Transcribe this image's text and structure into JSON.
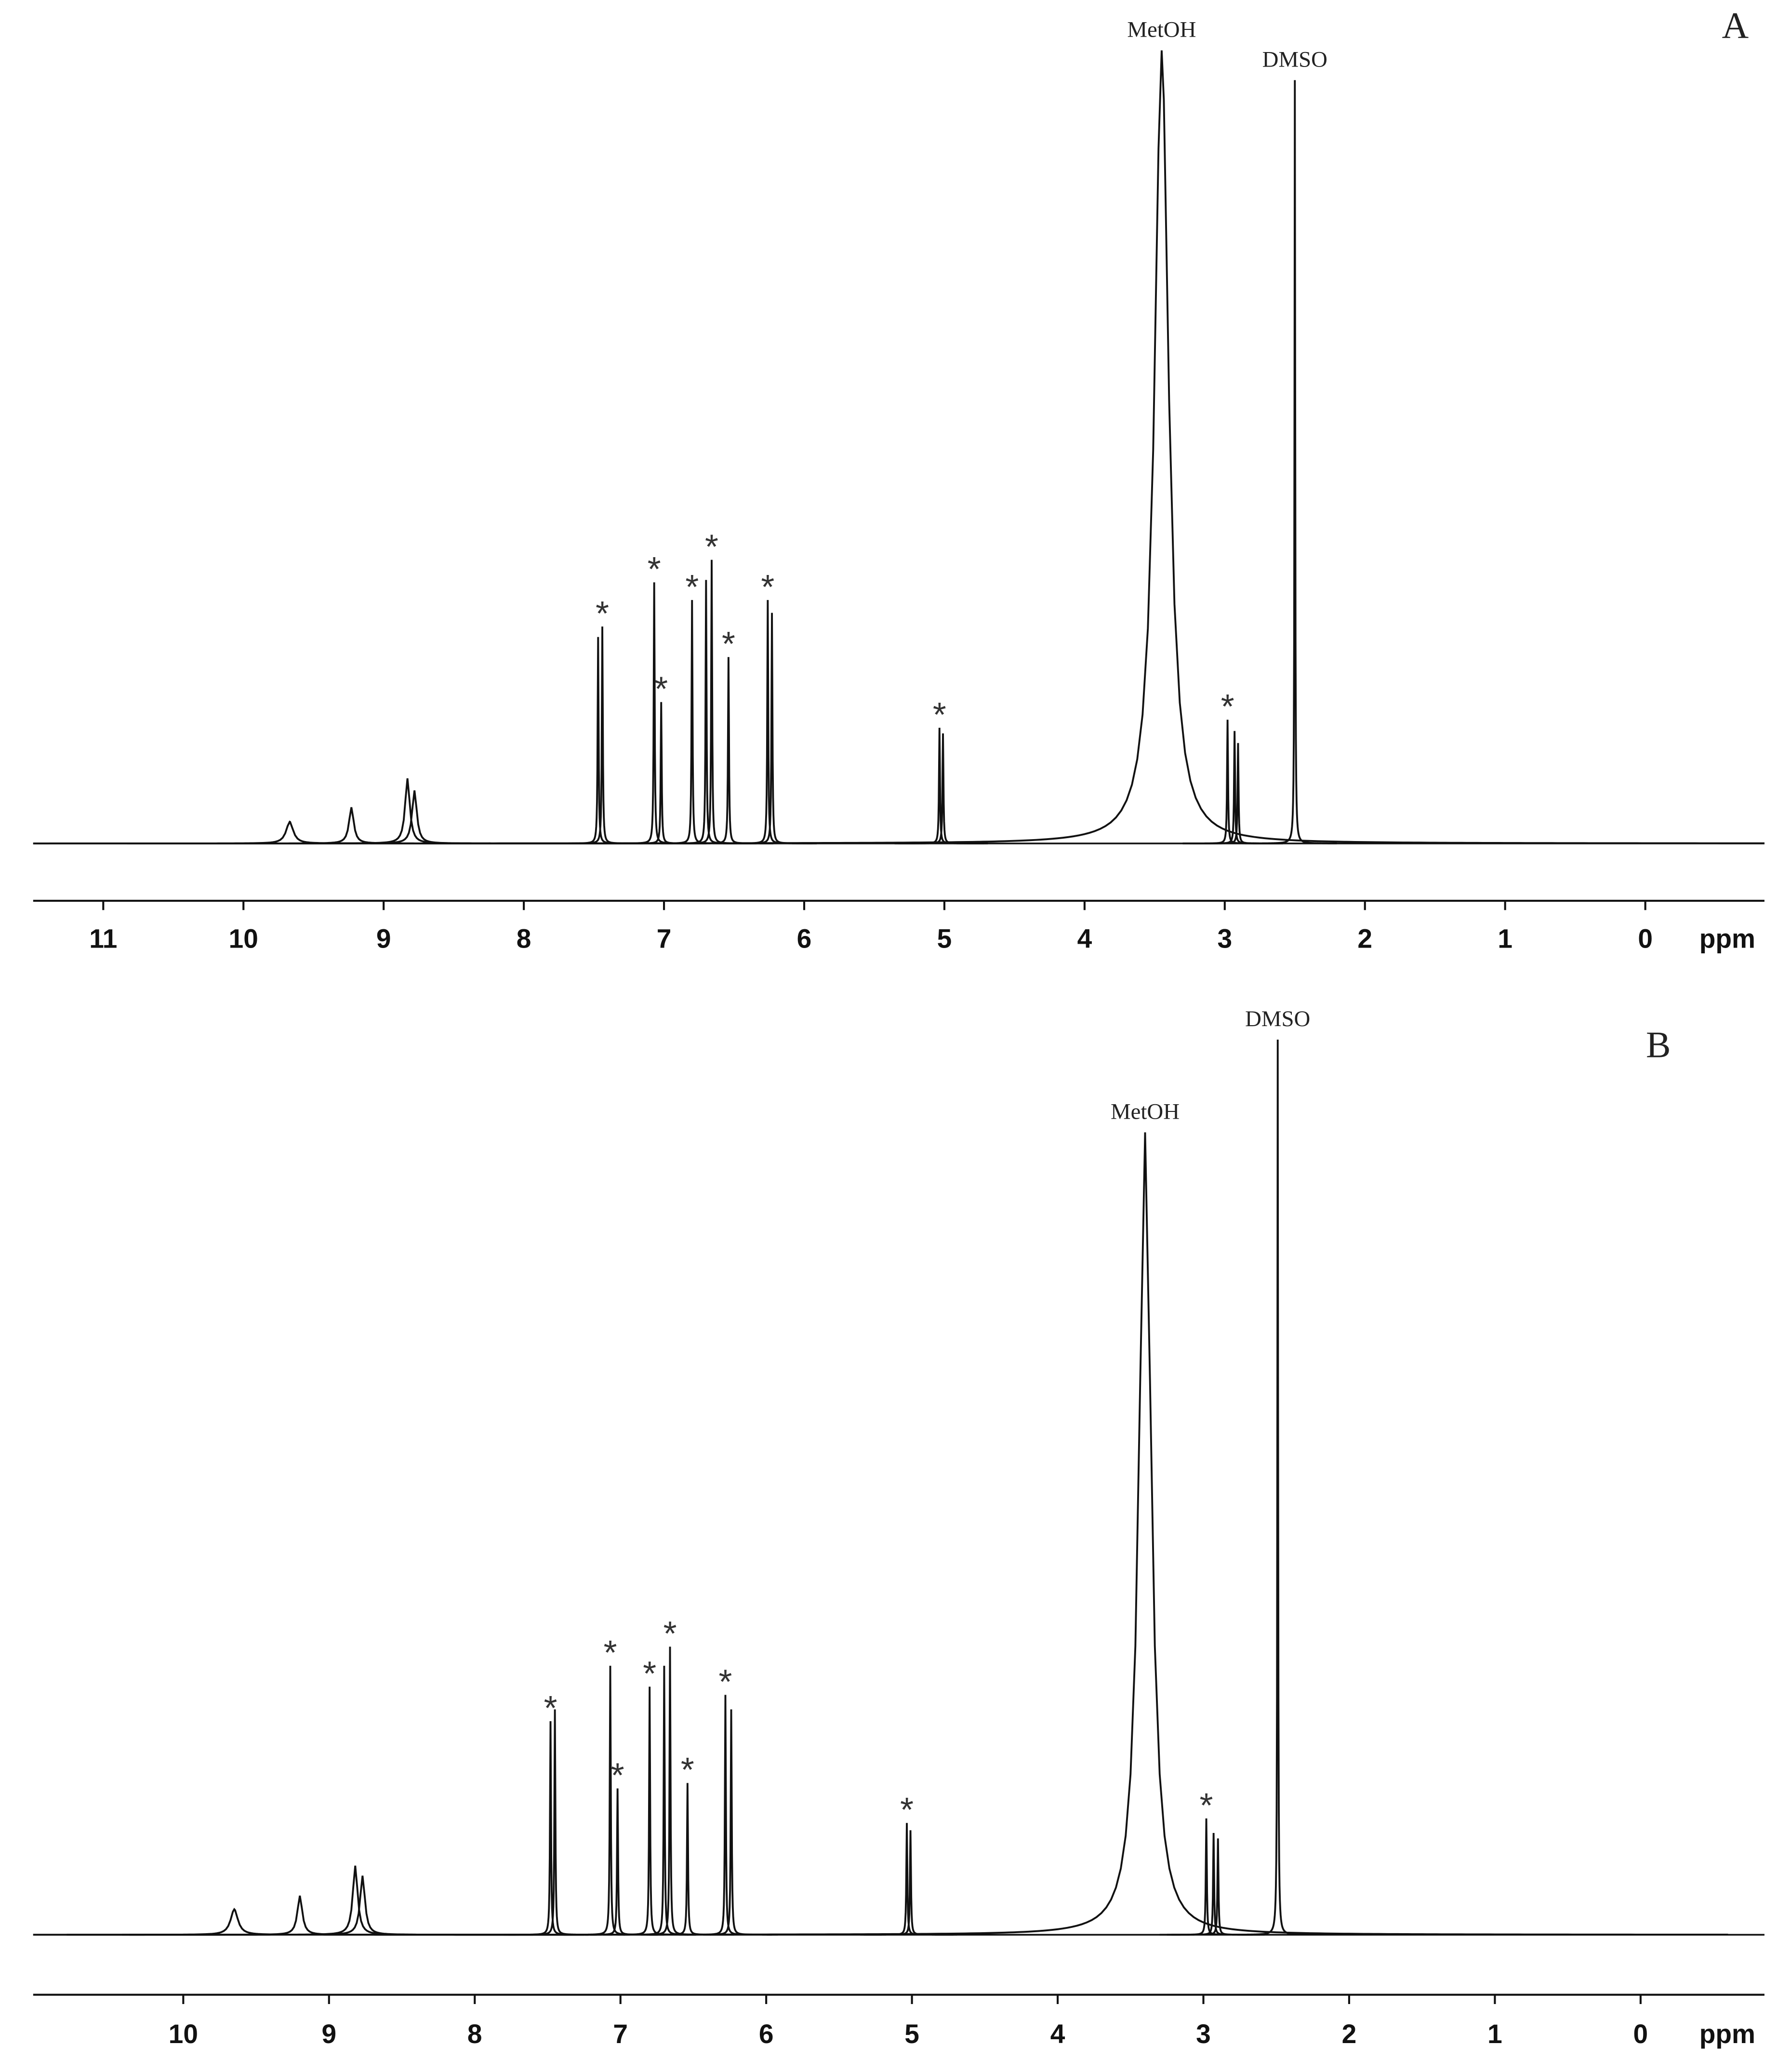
{
  "chart_data": [
    {
      "type": "spectrum",
      "panel": "A",
      "xlabel": "ppm",
      "xlim": [
        11.5,
        -0.85
      ],
      "ylim": [
        0,
        100
      ],
      "xticks": [
        11,
        10,
        9,
        8,
        7,
        6,
        5,
        4,
        3,
        2,
        1,
        0
      ],
      "color": "#111111",
      "x": [
        9.67,
        9.23,
        8.83,
        8.78,
        7.47,
        7.44,
        7.07,
        7.02,
        6.8,
        6.7,
        6.66,
        6.54,
        6.26,
        6.23,
        5.035,
        5.01,
        3.45,
        2.98,
        2.93,
        2.905,
        2.5
      ],
      "values": [
        2.7,
        4.5,
        8.1,
        6.6,
        25.7,
        27,
        32.5,
        17.6,
        30.3,
        32.8,
        35.3,
        23.2,
        30.3,
        28.7,
        14.4,
        13.7,
        98.7,
        15.4,
        14,
        12.5,
        95
      ],
      "widths": [
        0.06,
        0.04,
        0.04,
        0.04,
        0.008,
        0.008,
        0.008,
        0.008,
        0.008,
        0.008,
        0.008,
        0.008,
        0.008,
        0.008,
        0.008,
        0.008,
        0.12,
        0.008,
        0.008,
        0.008,
        0.006
      ],
      "labels": [
        null,
        null,
        null,
        null,
        null,
        "*",
        "*",
        "*",
        "*",
        null,
        "*",
        "*",
        "*",
        null,
        "*",
        null,
        "MetOH",
        "*",
        null,
        null,
        "DMSO"
      ]
    },
    {
      "type": "spectrum",
      "panel": "B",
      "xlabel": "ppm",
      "xlim": [
        11.03,
        -0.85
      ],
      "ylim": [
        0,
        100
      ],
      "xticks": [
        10,
        9,
        8,
        7,
        6,
        5,
        4,
        3,
        2,
        1,
        0
      ],
      "color": "#111111",
      "x": [
        9.65,
        9.2,
        8.82,
        8.77,
        7.48,
        7.45,
        7.07,
        7.02,
        6.8,
        6.7,
        6.66,
        6.54,
        6.28,
        6.24,
        5.035,
        5.01,
        3.4,
        2.98,
        2.93,
        2.9,
        2.49
      ],
      "values": [
        2.8,
        4.3,
        7.6,
        6.5,
        23.5,
        24.8,
        29.6,
        16.1,
        27.3,
        29.6,
        31.7,
        16.7,
        26.4,
        24.8,
        12.3,
        11.5,
        88.3,
        12.8,
        11.2,
        10.6,
        98.5
      ],
      "widths": [
        0.06,
        0.04,
        0.04,
        0.04,
        0.008,
        0.008,
        0.008,
        0.008,
        0.008,
        0.008,
        0.008,
        0.008,
        0.008,
        0.008,
        0.008,
        0.008,
        0.1,
        0.008,
        0.008,
        0.008,
        0.006
      ],
      "labels": [
        null,
        null,
        null,
        null,
        "*",
        null,
        "*",
        "*",
        "*",
        null,
        "*",
        "*",
        "*",
        null,
        "*",
        null,
        "MetOH",
        "*",
        null,
        null,
        "DMSO"
      ]
    }
  ]
}
